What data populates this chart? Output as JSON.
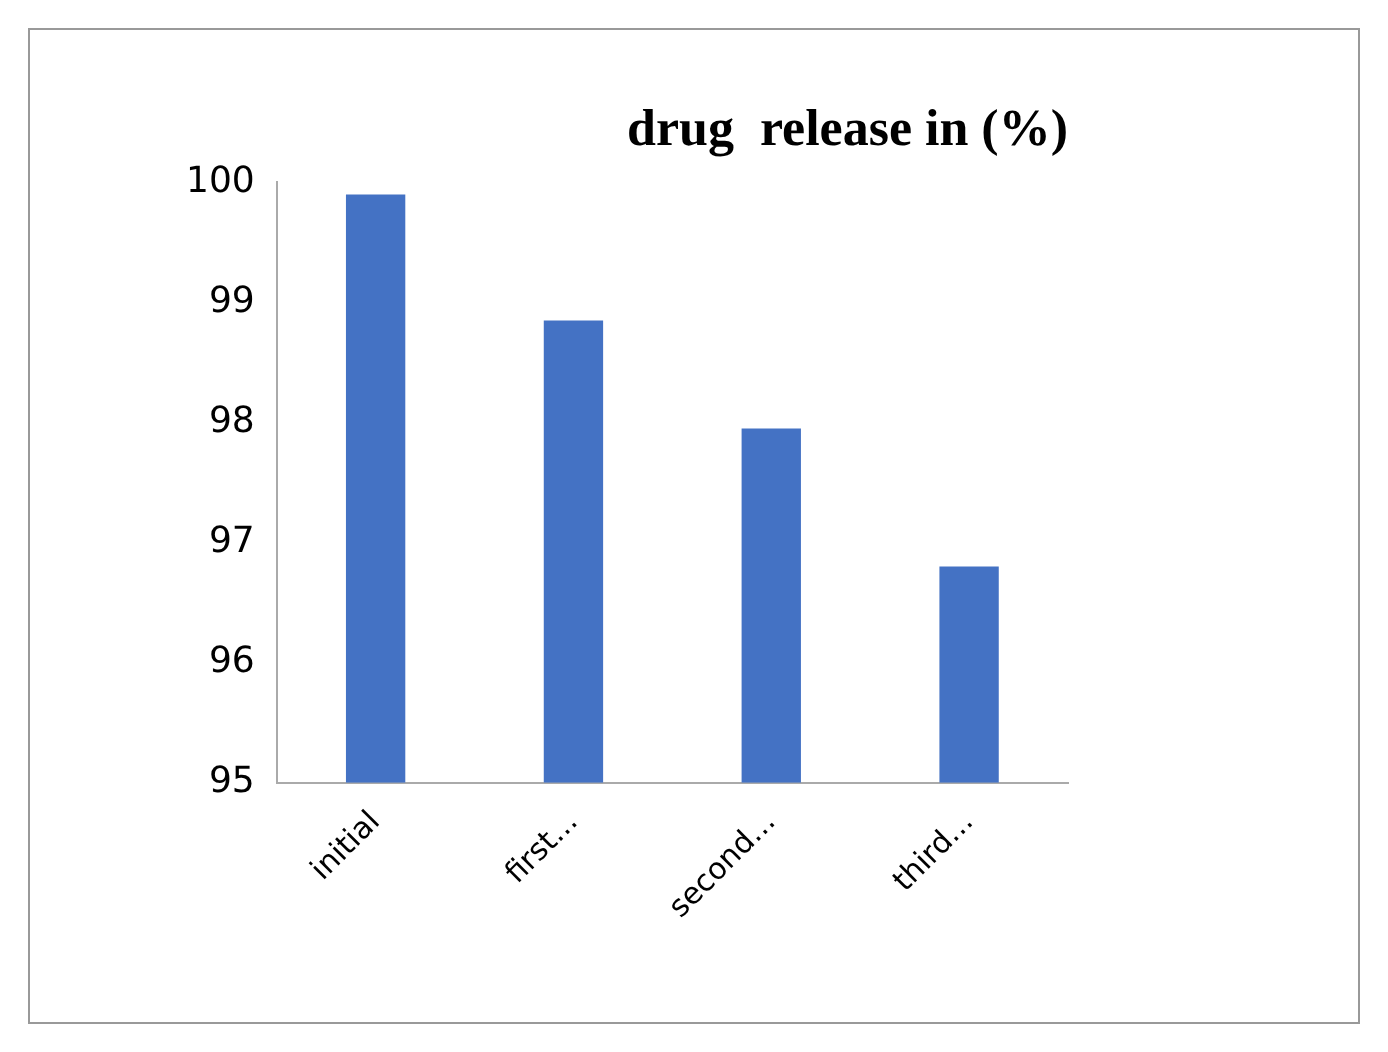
{
  "chart_data": {
    "type": "bar",
    "title": "drug  release in (%)",
    "categories": [
      "initial",
      "first...",
      "second...",
      "third..."
    ],
    "values": [
      99.9,
      98.85,
      97.95,
      96.8
    ],
    "color": "#4472c4",
    "ylim": [
      95,
      100
    ],
    "yticks": [
      95,
      96,
      97,
      98,
      99,
      100
    ],
    "grid": false,
    "legend": false
  }
}
